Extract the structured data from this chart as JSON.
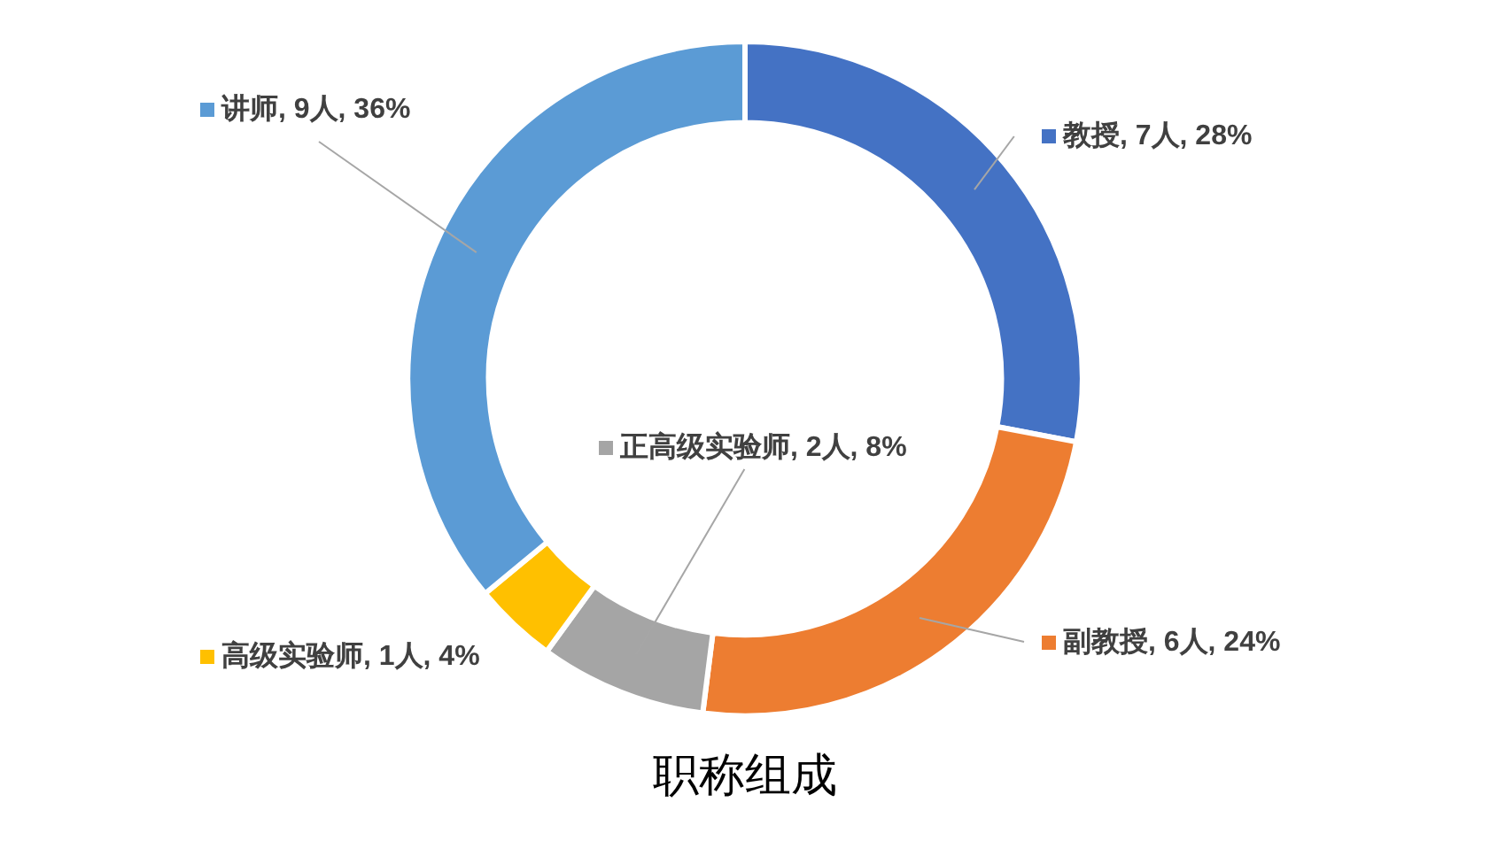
{
  "chart_data": {
    "type": "donut",
    "title": "职称组成",
    "categories": [
      "教授",
      "副教授",
      "正高级实验师",
      "高级实验师",
      "讲师"
    ],
    "values": [
      7,
      6,
      2,
      1,
      9
    ],
    "value_labels": [
      "7人, 28%",
      "6人, 24%",
      "2人, 8%",
      "1人, 4%",
      "9人, 36%"
    ],
    "colors": [
      "#4472c4",
      "#ed7d31",
      "#a5a5a5",
      "#ffc000",
      "#5b9bd5"
    ],
    "legend": "right"
  }
}
